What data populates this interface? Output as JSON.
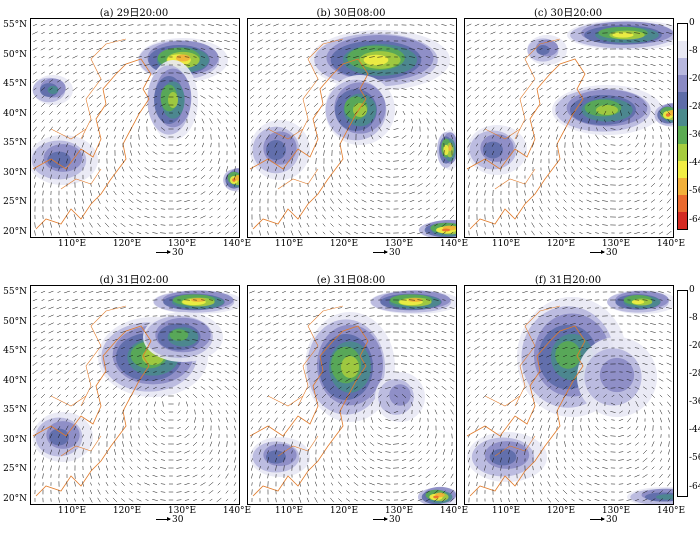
{
  "panels": [
    {
      "id": "a",
      "title": "(a) 29日20:00",
      "show_y": true,
      "show_x": true
    },
    {
      "id": "b",
      "title": "(b) 30日08:00",
      "show_y": false,
      "show_x": true
    },
    {
      "id": "c",
      "title": "(c) 30日20:00",
      "show_y": false,
      "show_x": true
    },
    {
      "id": "d",
      "title": "(d) 31日02:00",
      "show_y": true,
      "show_x": true
    },
    {
      "id": "e",
      "title": "(e) 31日08:00",
      "show_y": false,
      "show_x": true
    },
    {
      "id": "f",
      "title": "(f) 31日20:00",
      "show_y": false,
      "show_x": true
    }
  ],
  "lat_labels": [
    "55°N",
    "50°N",
    "45°N",
    "40°N",
    "35°N",
    "30°N",
    "25°N",
    "20°N"
  ],
  "lon_labels": [
    "110°E",
    "120°E",
    "130°E",
    "140°E"
  ],
  "reference_vector": {
    "label": "30"
  },
  "colorbar": {
    "labels": [
      "0",
      "-8",
      "-20",
      "-28",
      "-36",
      "-44",
      "-56",
      "-64"
    ],
    "colors": [
      "#ffffff",
      "#e8e8f4",
      "#b7b7de",
      "#8a8ac4",
      "#5d6ca8",
      "#4a8a8c",
      "#5aab52",
      "#a6cc3e",
      "#f2ee44",
      "#f2b03a",
      "#ea6a2e",
      "#d42a22"
    ]
  }
}
